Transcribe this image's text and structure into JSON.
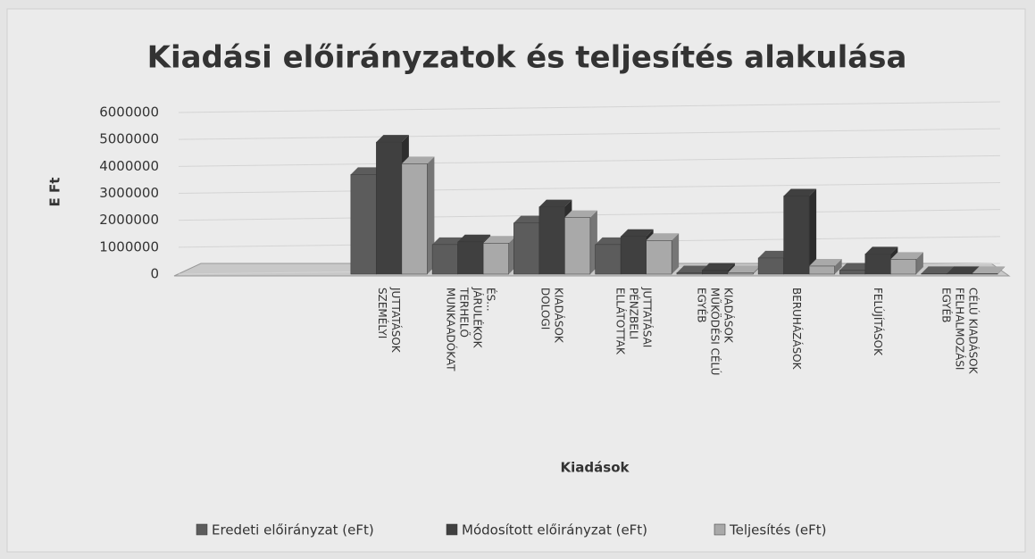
{
  "chart_data": {
    "type": "bar",
    "title": "Kiadási előirányzatok és teljesítés alakulása",
    "x_label": "Kiadások",
    "y_label": "E Ft",
    "categories": [
      "SZEMÉLYI JUTTATÁSOK",
      "MUNKAADÓKAT TERHELŐ JÁRULÉKOK ÉS...",
      "DOLOGI KIADÁSOK",
      "ELLÁTOTTAK PÉNZBELI JUTTATÁSAI",
      "EGYÉB MŰKÖDÉSI CÉLÚ KIADÁSOK",
      "BERUHÁZÁSOK",
      "FELÚJÍTÁSOK",
      "EGYÉB FELHALMOZÁSI CÉLÚ KIADÁSOK"
    ],
    "series": [
      {
        "name": "Eredeti előirányzat (eFt)",
        "color": "#5c5c5c",
        "values": [
          3700000,
          1100000,
          1900000,
          1100000,
          50000,
          600000,
          150000,
          20000
        ]
      },
      {
        "name": "Módosított előirányzat (eFt)",
        "color": "#404040",
        "values": [
          4900000,
          1200000,
          2500000,
          1400000,
          150000,
          2900000,
          750000,
          20000
        ]
      },
      {
        "name": "Teljesítés (eFt)",
        "color": "#a9a9a9",
        "values": [
          4100000,
          1150000,
          2100000,
          1250000,
          50000,
          300000,
          550000,
          20000
        ]
      }
    ],
    "ylim": [
      0,
      6000000
    ],
    "yticks": [
      0,
      1000000,
      2000000,
      3000000,
      4000000,
      5000000,
      6000000
    ],
    "grid": true,
    "legend": "bottom"
  }
}
